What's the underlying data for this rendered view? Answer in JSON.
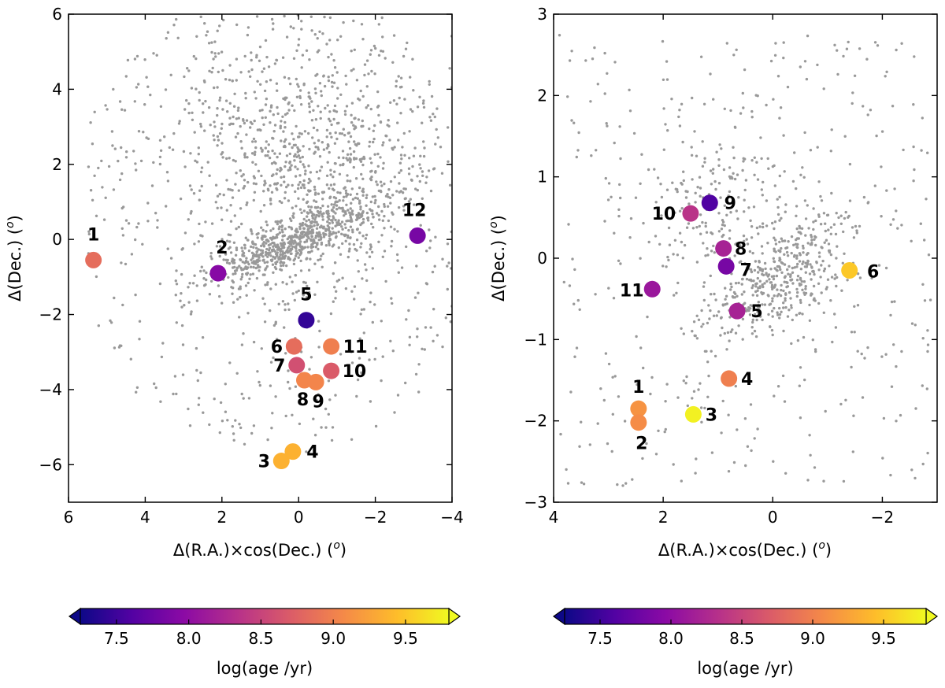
{
  "chart_data": [
    {
      "type": "scatter",
      "name": "left-panel",
      "xlabel": "Δ(R.A.)×cos(Dec.) (",
      "xlabel_sup": "o",
      "xlabel_end": ")",
      "ylabel": "Δ(Dec.) (",
      "ylabel_sup": "o",
      "ylabel_end": ")",
      "xlim": [
        6,
        -4
      ],
      "ylim": [
        -7,
        6
      ],
      "xticks": [
        6,
        4,
        2,
        0,
        -2,
        -4
      ],
      "xtick_labels": [
        "6",
        "4",
        "2",
        "0",
        "−2",
        "−4"
      ],
      "yticks": [
        -6,
        -4,
        -2,
        0,
        2,
        4,
        6
      ],
      "ytick_labels": [
        "−6",
        "−4",
        "−2",
        "0",
        "2",
        "4",
        "6"
      ],
      "background_color": "#999999",
      "clusters": [
        {
          "id": "1",
          "x": 5.35,
          "y": -0.55,
          "logage": 8.85
        },
        {
          "id": "2",
          "x": 2.1,
          "y": -0.9,
          "logage": 7.95
        },
        {
          "id": "3",
          "x": 0.45,
          "y": -5.9,
          "logage": 9.35
        },
        {
          "id": "4",
          "x": 0.15,
          "y": -5.65,
          "logage": 9.35
        },
        {
          "id": "5",
          "x": -0.2,
          "y": -2.15,
          "logage": 7.45
        },
        {
          "id": "6",
          "x": 0.12,
          "y": -2.85,
          "logage": 8.85
        },
        {
          "id": "7",
          "x": 0.05,
          "y": -3.35,
          "logage": 8.6
        },
        {
          "id": "8",
          "x": -0.15,
          "y": -3.75,
          "logage": 9.05
        },
        {
          "id": "9",
          "x": -0.45,
          "y": -3.8,
          "logage": 9.05
        },
        {
          "id": "10",
          "x": -0.85,
          "y": -3.5,
          "logage": 8.7
        },
        {
          "id": "11",
          "x": -0.85,
          "y": -2.85,
          "logage": 9.0
        },
        {
          "id": "12",
          "x": -3.1,
          "y": 0.1,
          "logage": 7.85
        }
      ]
    },
    {
      "type": "scatter",
      "name": "right-panel",
      "xlabel": "Δ(R.A.)×cos(Dec.) (",
      "xlabel_sup": "o",
      "xlabel_end": ")",
      "ylabel": "Δ(Dec.) (",
      "ylabel_sup": "o",
      "ylabel_end": ")",
      "xlim": [
        4,
        -3
      ],
      "ylim": [
        -3,
        3
      ],
      "xticks": [
        4,
        2,
        0,
        -2
      ],
      "xtick_labels": [
        "4",
        "2",
        "0",
        "−2"
      ],
      "yticks": [
        -3,
        -2,
        -1,
        0,
        1,
        2,
        3
      ],
      "ytick_labels": [
        "−3",
        "−2",
        "−1",
        "0",
        "1",
        "2",
        "3"
      ],
      "background_color": "#999999",
      "clusters": [
        {
          "id": "1",
          "x": 2.45,
          "y": -1.85,
          "logage": 9.15
        },
        {
          "id": "2",
          "x": 2.45,
          "y": -2.02,
          "logage": 9.1
        },
        {
          "id": "3",
          "x": 1.45,
          "y": -1.92,
          "logage": 9.75
        },
        {
          "id": "4",
          "x": 0.8,
          "y": -1.48,
          "logage": 9.0
        },
        {
          "id": "5",
          "x": 0.65,
          "y": -0.65,
          "logage": 8.2
        },
        {
          "id": "6",
          "x": -1.4,
          "y": -0.15,
          "logage": 9.5
        },
        {
          "id": "7",
          "x": 0.85,
          "y": -0.1,
          "logage": 7.85
        },
        {
          "id": "8",
          "x": 0.9,
          "y": 0.12,
          "logage": 8.2
        },
        {
          "id": "9",
          "x": 1.15,
          "y": 0.68,
          "logage": 7.6
        },
        {
          "id": "10",
          "x": 1.5,
          "y": 0.55,
          "logage": 8.35
        },
        {
          "id": "11",
          "x": 2.2,
          "y": -0.38,
          "logage": 8.1
        }
      ]
    }
  ],
  "colorbar": {
    "label": "log(age /yr)",
    "range": [
      7.25,
      9.8
    ],
    "ticks": [
      7.5,
      8.0,
      8.5,
      9.0,
      9.5
    ],
    "tick_labels": [
      "7.5",
      "8.0",
      "8.5",
      "9.0",
      "9.5"
    ],
    "colormap": "plasma",
    "extend": "both"
  },
  "colors": {
    "plasma_stops": [
      "#0d0887",
      "#5302a3",
      "#8b0aa5",
      "#b83289",
      "#db5c68",
      "#f48849",
      "#febd2a",
      "#f0f921"
    ],
    "background_points": "#999999"
  }
}
